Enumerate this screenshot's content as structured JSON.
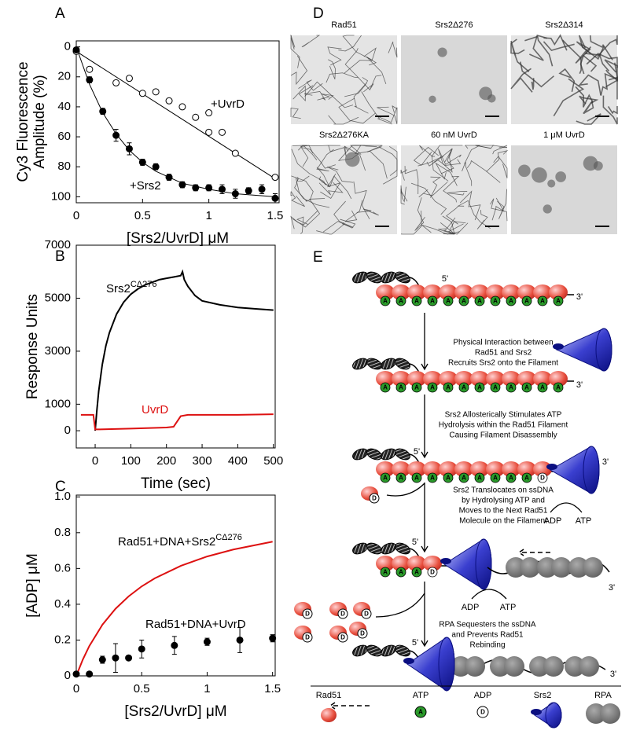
{
  "panel_labels": [
    "A",
    "B",
    "C",
    "D",
    "E"
  ],
  "chart_data": [
    {
      "type": "scatter",
      "ylabel": [
        "Cy3 Fluorescence",
        "Amplitude (%)"
      ],
      "xlabel": "[Srs2/UvrD] μM",
      "xlim": [
        0,
        1.53
      ],
      "xticks": [
        0,
        0.5,
        1,
        1.5
      ],
      "ylim": [
        -4,
        104
      ],
      "y_reversed": true,
      "yticks": [
        0,
        20,
        40,
        60,
        80,
        100
      ],
      "series": [
        {
          "name": "+UvrD",
          "style": "points",
          "marker": "open",
          "color": "#000000",
          "x": [
            0,
            0.1,
            0.3,
            0.4,
            0.5,
            0.6,
            0.7,
            0.8,
            0.9,
            1.0,
            1.0,
            1.1,
            1.2,
            1.5
          ],
          "values": [
            3,
            15,
            24,
            21,
            31,
            30,
            36,
            40,
            47,
            44,
            57,
            57,
            71,
            87
          ]
        },
        {
          "name": "+Srs2",
          "style": "points",
          "marker": "filled",
          "color": "#000000",
          "x": [
            0,
            0.1,
            0.2,
            0.3,
            0.4,
            0.5,
            0.6,
            0.7,
            0.8,
            0.9,
            1.0,
            1.1,
            1.2,
            1.3,
            1.4,
            1.5
          ],
          "values": [
            2,
            22,
            43,
            59,
            68,
            77,
            80,
            87,
            92,
            94,
            94,
            95,
            98,
            96,
            95,
            101
          ],
          "errors": [
            0,
            2,
            2,
            4,
            4,
            2,
            2,
            2,
            2,
            2,
            2,
            3,
            3,
            2,
            3,
            3
          ]
        }
      ],
      "fits": [
        {
          "x": [
            0,
            1.5
          ],
          "values": [
            3,
            88
          ]
        },
        {
          "x": [
            0,
            0.1,
            0.2,
            0.3,
            0.4,
            0.5,
            0.6,
            0.8,
            1.0,
            1.2,
            1.5
          ],
          "values": [
            0,
            25,
            44,
            58,
            69,
            77,
            83,
            91,
            95,
            98,
            100
          ]
        }
      ]
    },
    {
      "type": "line",
      "ylabel": "Response Units",
      "xlabel": "Time (sec)",
      "xlim": [
        -53,
        505
      ],
      "xticks": [
        0,
        100,
        200,
        300,
        400,
        500
      ],
      "ylim": [
        -650,
        7000
      ],
      "yticks": [
        0,
        1000,
        3000,
        5000,
        7000
      ],
      "series": [
        {
          "name": "Srs2",
          "name_sup": "CΔ276",
          "color": "#000000",
          "x": [
            0,
            5,
            10,
            20,
            30,
            40,
            60,
            80,
            100,
            120,
            140,
            160,
            180,
            200,
            220,
            240,
            245,
            250,
            260,
            280,
            300,
            350,
            400,
            450,
            500
          ],
          "values": [
            0,
            800,
            1500,
            2500,
            3200,
            3700,
            4400,
            4850,
            5150,
            5350,
            5500,
            5600,
            5700,
            5750,
            5800,
            5850,
            6000,
            5700,
            5450,
            5100,
            4900,
            4750,
            4650,
            4600,
            4550
          ]
        },
        {
          "name": "UvrD",
          "color": "#dd1111",
          "x": [
            -40,
            -5,
            0,
            10,
            100,
            200,
            220,
            240,
            260,
            300,
            400,
            500
          ],
          "values": [
            600,
            600,
            50,
            50,
            80,
            120,
            150,
            550,
            600,
            600,
            600,
            620
          ]
        }
      ]
    },
    {
      "type": "scatter",
      "ylabel": "[ADP] μM",
      "xlabel": "[Srs2/UvrD] μM",
      "xlim": [
        0,
        1.52
      ],
      "xticks": [
        0,
        0.5,
        1,
        1.5
      ],
      "ylim": [
        0,
        1.01
      ],
      "yticks": [
        0,
        0.2,
        0.4,
        0.6,
        0.8,
        {
          "value": 1,
          "label": "1.0"
        }
      ],
      "series": [
        {
          "name": "Rad51+DNA+Srs2",
          "name_sup": "CΔ276",
          "style": "line",
          "color": "#dd1111",
          "x": [
            0,
            0.05,
            0.1,
            0.2,
            0.3,
            0.4,
            0.5,
            0.6,
            0.8,
            1.0,
            1.2,
            1.5
          ],
          "values": [
            0,
            0.091,
            0.167,
            0.286,
            0.375,
            0.444,
            0.5,
            0.545,
            0.615,
            0.667,
            0.706,
            0.75
          ]
        },
        {
          "name": "Rad51+DNA+UvrD",
          "style": "points",
          "marker": "filled",
          "color": "#000000",
          "x": [
            0,
            0.1,
            0.2,
            0.3,
            0.4,
            0.5,
            0.75,
            1.0,
            1.25,
            1.5
          ],
          "values": [
            0.01,
            0.01,
            0.09,
            0.1,
            0.1,
            0.15,
            0.17,
            0.19,
            0.2,
            0.21
          ],
          "errors": [
            0,
            0,
            0.02,
            0.08,
            0,
            0.05,
            0.05,
            0.02,
            0.07,
            0.02
          ]
        }
      ]
    }
  ],
  "micrographs": [
    "Rad51",
    "Srs2Δ276",
    "Srs2Δ314",
    "Srs2Δ276KA",
    "60 nM UvrD",
    "1 μM UvrD"
  ],
  "diagram": {
    "five_prime": "5'",
    "three_prime": "3'",
    "atp_letter": "A",
    "adp_letter": "D",
    "adp": "ADP",
    "atp": "ATP",
    "steps": [
      [
        "Physical Interaction between",
        "Rad51 and Srs2",
        "Recruits Srs2 onto the Filament"
      ],
      [
        "Srs2 Allosterically Stimulates ATP",
        "Hydrolysis within the Rad51 Filament",
        "Causing Filament Disassembly"
      ],
      [
        "Srs2 Translocates on ssDNA",
        "by Hydrolysing ATP and",
        "Moves to the Next Rad51",
        "Molecule on the Filament"
      ],
      [
        "RPA Sequesters the ssDNA",
        "and Prevents Rad51",
        "Rebinding"
      ]
    ],
    "legend": [
      "Rad51",
      "ATP",
      "ADP",
      "Srs2",
      "RPA"
    ]
  }
}
